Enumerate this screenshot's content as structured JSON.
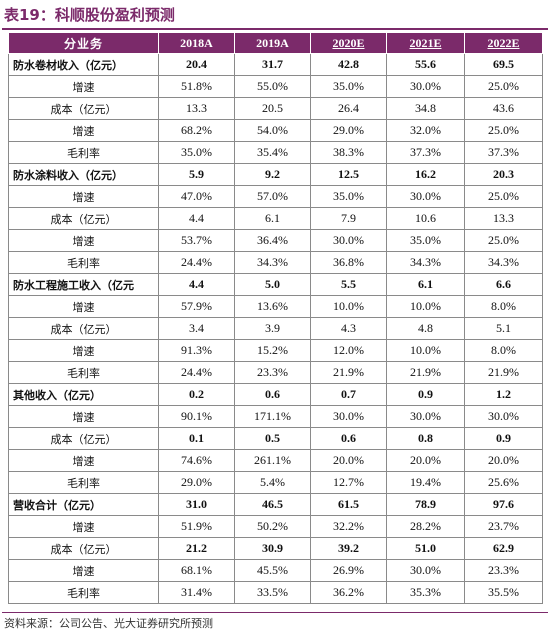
{
  "title": "表19：科顺股份盈利预测",
  "source": "资料来源：公司公告、光大证券研究所预测",
  "colors": {
    "accent": "#7b2a6a",
    "header_text": "#ffffff"
  },
  "table": {
    "header": [
      "分业务",
      "2018A",
      "2019A",
      "2020E",
      "2021E",
      "2022E"
    ],
    "rows": [
      {
        "label": "防水卷材收入（亿元）",
        "type": "main",
        "values": [
          "20.4",
          "31.7",
          "42.8",
          "55.6",
          "69.5"
        ]
      },
      {
        "label": "增速",
        "type": "sub",
        "values": [
          "51.8%",
          "55.0%",
          "35.0%",
          "30.0%",
          "25.0%"
        ]
      },
      {
        "label": "成本（亿元）",
        "type": "sub",
        "values": [
          "13.3",
          "20.5",
          "26.4",
          "34.8",
          "43.6"
        ]
      },
      {
        "label": "增速",
        "type": "sub",
        "values": [
          "68.2%",
          "54.0%",
          "29.0%",
          "32.0%",
          "25.0%"
        ]
      },
      {
        "label": "毛利率",
        "type": "sub",
        "values": [
          "35.0%",
          "35.4%",
          "38.3%",
          "37.3%",
          "37.3%"
        ]
      },
      {
        "label": "防水涂料收入（亿元）",
        "type": "main",
        "values": [
          "5.9",
          "9.2",
          "12.5",
          "16.2",
          "20.3"
        ]
      },
      {
        "label": "增速",
        "type": "sub",
        "values": [
          "47.0%",
          "57.0%",
          "35.0%",
          "30.0%",
          "25.0%"
        ]
      },
      {
        "label": "成本（亿元）",
        "type": "sub",
        "values": [
          "4.4",
          "6.1",
          "7.9",
          "10.6",
          "13.3"
        ]
      },
      {
        "label": "增速",
        "type": "sub",
        "values": [
          "53.7%",
          "36.4%",
          "30.0%",
          "35.0%",
          "25.0%"
        ]
      },
      {
        "label": "毛利率",
        "type": "sub",
        "values": [
          "24.4%",
          "34.3%",
          "36.8%",
          "34.3%",
          "34.3%"
        ]
      },
      {
        "label": "防水工程施工收入（亿元",
        "type": "main",
        "values": [
          "4.4",
          "5.0",
          "5.5",
          "6.1",
          "6.6"
        ]
      },
      {
        "label": "增速",
        "type": "sub",
        "values": [
          "57.9%",
          "13.6%",
          "10.0%",
          "10.0%",
          "8.0%"
        ]
      },
      {
        "label": "成本（亿元）",
        "type": "sub",
        "values": [
          "3.4",
          "3.9",
          "4.3",
          "4.8",
          "5.1"
        ]
      },
      {
        "label": "增速",
        "type": "sub",
        "values": [
          "91.3%",
          "15.2%",
          "12.0%",
          "10.0%",
          "8.0%"
        ]
      },
      {
        "label": "毛利率",
        "type": "sub",
        "values": [
          "24.4%",
          "23.3%",
          "21.9%",
          "21.9%",
          "21.9%"
        ]
      },
      {
        "label": "其他收入（亿元）",
        "type": "main",
        "values": [
          "0.2",
          "0.6",
          "0.7",
          "0.9",
          "1.2"
        ]
      },
      {
        "label": "增速",
        "type": "sub",
        "values": [
          "90.1%",
          "171.1%",
          "30.0%",
          "30.0%",
          "30.0%"
        ]
      },
      {
        "label": "成本（亿元）",
        "type": "boldnum",
        "values": [
          "0.1",
          "0.5",
          "0.6",
          "0.8",
          "0.9"
        ]
      },
      {
        "label": "增速",
        "type": "sub",
        "values": [
          "74.6%",
          "261.1%",
          "20.0%",
          "20.0%",
          "20.0%"
        ]
      },
      {
        "label": "毛利率",
        "type": "sub",
        "values": [
          "29.0%",
          "5.4%",
          "12.7%",
          "19.4%",
          "25.6%"
        ]
      },
      {
        "label": "营收合计（亿元）",
        "type": "main",
        "values": [
          "31.0",
          "46.5",
          "61.5",
          "78.9",
          "97.6"
        ]
      },
      {
        "label": "增速",
        "type": "sub",
        "values": [
          "51.9%",
          "50.2%",
          "32.2%",
          "28.2%",
          "23.7%"
        ]
      },
      {
        "label": "成本（亿元）",
        "type": "boldnum",
        "values": [
          "21.2",
          "30.9",
          "39.2",
          "51.0",
          "62.9"
        ]
      },
      {
        "label": "增速",
        "type": "sub",
        "values": [
          "68.1%",
          "45.5%",
          "26.9%",
          "30.0%",
          "23.3%"
        ]
      },
      {
        "label": "毛利率",
        "type": "sub",
        "values": [
          "31.4%",
          "33.5%",
          "36.2%",
          "35.3%",
          "35.5%"
        ]
      }
    ]
  }
}
